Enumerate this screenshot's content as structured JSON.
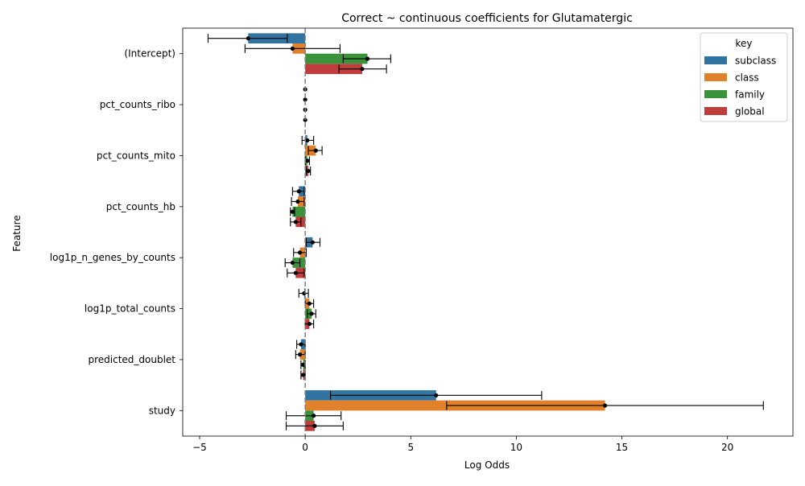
{
  "chart_data": {
    "type": "bar",
    "orientation": "horizontal",
    "title": "Correct ~ continuous coefficients for Glutamatergic",
    "xlabel": "Log Odds",
    "ylabel": "Feature",
    "xlim": [
      -5.8,
      23.1
    ],
    "xticks": [
      -5,
      0,
      5,
      10,
      15,
      20
    ],
    "grid": false,
    "reference_line": {
      "x": 0,
      "style": "dashed",
      "color": "#7f7f7f"
    },
    "categories": [
      "(Intercept)",
      "pct_counts_ribo",
      "pct_counts_mito",
      "pct_counts_hb",
      "log1p_n_genes_by_counts",
      "log1p_total_counts",
      "predicted_doublet",
      "study"
    ],
    "legend": {
      "title": "key",
      "placement": "top-right"
    },
    "series": [
      {
        "name": "subclass",
        "color": "#3274a1",
        "values": [
          -2.7,
          0.0,
          0.1,
          -0.3,
          0.35,
          -0.05,
          -0.2,
          6.2
        ],
        "ci_low": [
          -4.6,
          0.0,
          -0.15,
          -0.6,
          0.05,
          -0.3,
          -0.4,
          1.2
        ],
        "ci_high": [
          -0.85,
          0.0,
          0.4,
          -0.05,
          0.7,
          0.15,
          0.0,
          11.2
        ]
      },
      {
        "name": "class",
        "color": "#e1812c",
        "values": [
          -0.6,
          0.0,
          0.5,
          -0.35,
          -0.25,
          0.2,
          -0.25,
          14.2
        ],
        "ci_low": [
          -2.85,
          0.0,
          0.15,
          -0.65,
          -0.55,
          0.0,
          -0.45,
          6.7
        ],
        "ci_high": [
          1.65,
          0.0,
          0.8,
          -0.05,
          0.05,
          0.4,
          0.0,
          21.7
        ]
      },
      {
        "name": "family",
        "color": "#3a923a",
        "values": [
          2.95,
          0.0,
          0.1,
          -0.6,
          -0.6,
          0.3,
          -0.1,
          0.4
        ],
        "ci_low": [
          1.8,
          0.0,
          0.0,
          -0.7,
          -0.95,
          0.1,
          -0.2,
          -0.9
        ],
        "ci_high": [
          4.05,
          0.0,
          0.2,
          -0.5,
          -0.25,
          0.5,
          0.0,
          1.7
        ]
      },
      {
        "name": "global",
        "color": "#c03d3e",
        "values": [
          2.7,
          0.0,
          0.15,
          -0.45,
          -0.45,
          0.2,
          -0.1,
          0.45
        ],
        "ci_low": [
          1.6,
          0.0,
          0.05,
          -0.7,
          -0.85,
          0.0,
          -0.2,
          -0.9
        ],
        "ci_high": [
          3.85,
          0.0,
          0.25,
          -0.2,
          -0.05,
          0.4,
          0.0,
          1.8
        ]
      }
    ]
  }
}
